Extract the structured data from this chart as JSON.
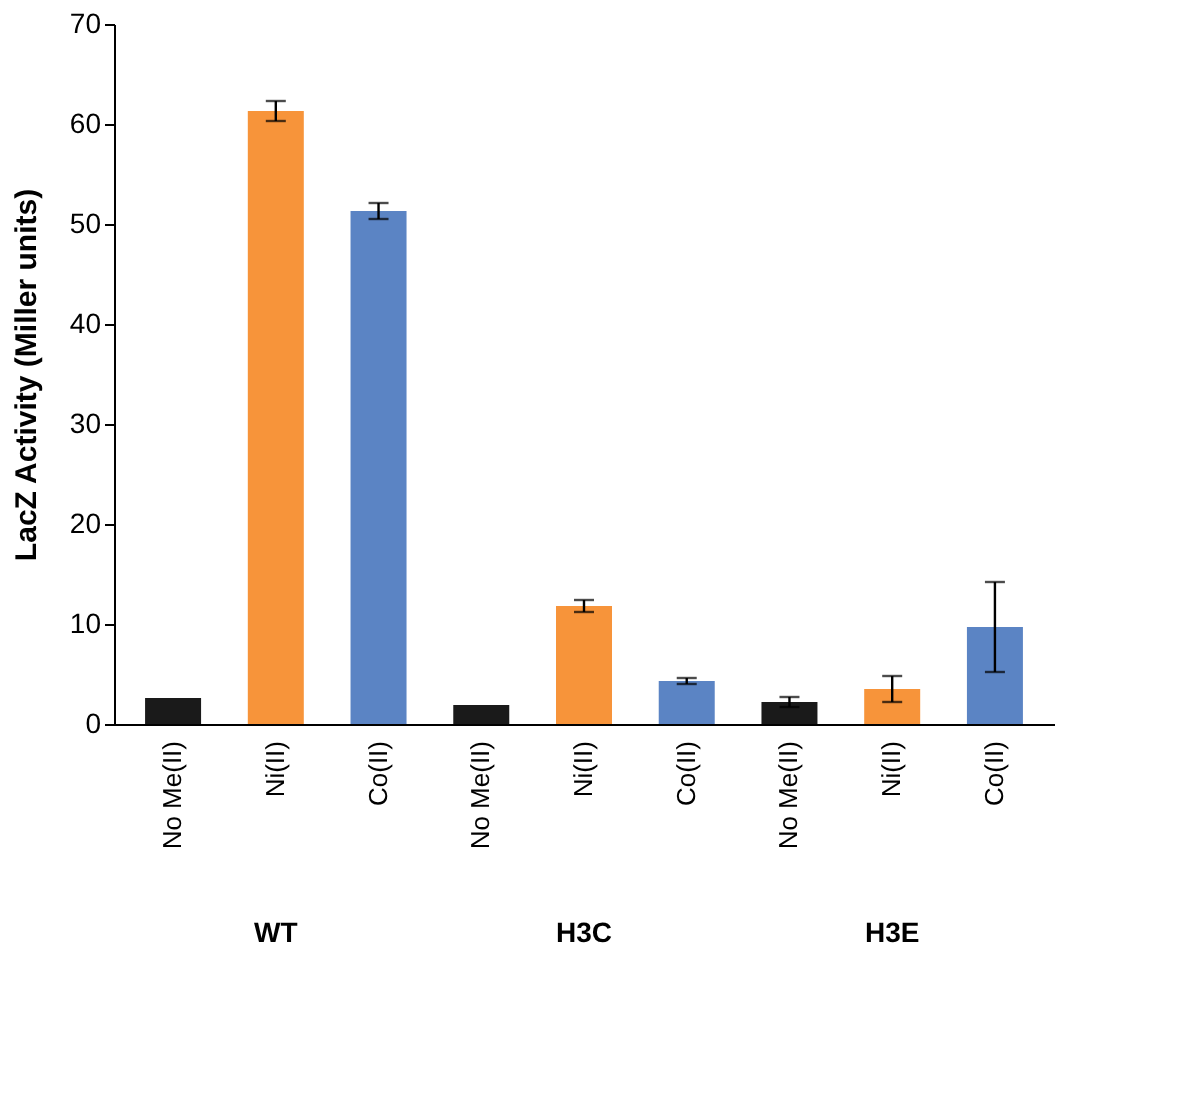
{
  "chart_data": {
    "type": "bar",
    "ylabel": "LacZ Activity (Miller units)",
    "categories": [
      "No Me(II)",
      "Ni(II)",
      "Co(II)",
      "No Me(II)",
      "Ni(II)",
      "Co(II)",
      "No Me(II)",
      "Ni(II)",
      "Co(II)"
    ],
    "values": [
      2.6,
      61.3,
      51.3,
      1.9,
      11.8,
      4.3,
      2.2,
      3.5,
      9.7
    ],
    "errors": [
      null,
      1.0,
      0.8,
      null,
      0.6,
      0.3,
      0.5,
      1.3,
      4.5
    ],
    "colors": [
      "#1a1a1a",
      "#f7943a",
      "#5b84c4",
      "#1a1a1a",
      "#f7943a",
      "#5b84c4",
      "#1a1a1a",
      "#f7943a",
      "#5b84c4"
    ],
    "ylim": [
      0,
      70
    ],
    "yticks": [
      0,
      10,
      20,
      30,
      40,
      50,
      60,
      70
    ],
    "annotations": [
      "WT",
      "H3C",
      "H3E"
    ],
    "grid": false
  }
}
